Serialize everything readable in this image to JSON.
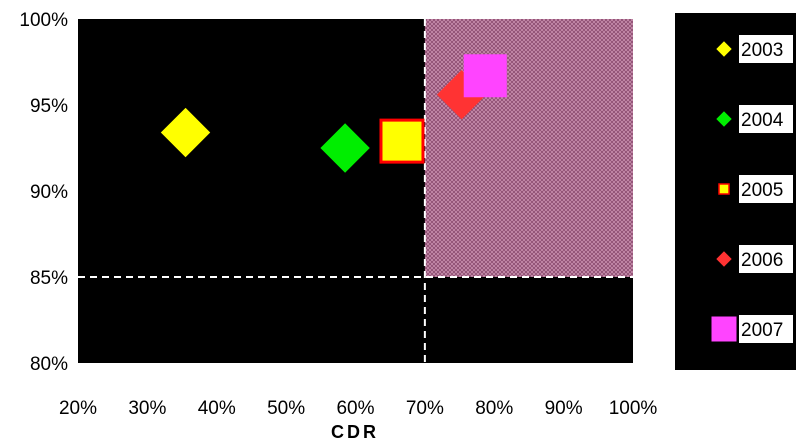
{
  "chart_data": {
    "type": "scatter",
    "title": "",
    "xlabel": "CDR",
    "ylabel": "",
    "xlim": [
      0.2,
      1.0
    ],
    "ylim": [
      0.8,
      1.0
    ],
    "x_ticks": [
      "20%",
      "30%",
      "40%",
      "50%",
      "60%",
      "70%",
      "80%",
      "90%",
      "100%"
    ],
    "y_ticks": [
      "80%",
      "85%",
      "90%",
      "95%",
      "100%"
    ],
    "grid": false,
    "legend_position": "right",
    "plot_background": "#000000",
    "threshold_lines": {
      "x": 0.7,
      "y": 0.85,
      "color": "#ffffff",
      "style": "dashed"
    },
    "highlight_region": {
      "x": [
        0.7,
        1.0
      ],
      "y": [
        0.85,
        1.0
      ],
      "color": "#8a4a6e",
      "pattern": "crosshatch"
    },
    "series": [
      {
        "name": "2003",
        "marker": "diamond",
        "color": "#ffff00",
        "border": "#ffff00",
        "x": [
          0.355
        ],
        "y": [
          0.934
        ]
      },
      {
        "name": "2004",
        "marker": "diamond",
        "color": "#00ee00",
        "border": "#00ee00",
        "x": [
          0.585
        ],
        "y": [
          0.925
        ]
      },
      {
        "name": "2005",
        "marker": "square",
        "color": "#ffff00",
        "border": "#ff0000",
        "x": [
          0.667
        ],
        "y": [
          0.929
        ]
      },
      {
        "name": "2006",
        "marker": "diamond",
        "color": "#ff3333",
        "border": "#ff3333",
        "x": [
          0.753
        ],
        "y": [
          0.956
        ]
      },
      {
        "name": "2007",
        "marker": "square",
        "color": "#ff44ff",
        "border": "#ff44ff",
        "x": [
          0.787
        ],
        "y": [
          0.967
        ]
      }
    ]
  }
}
